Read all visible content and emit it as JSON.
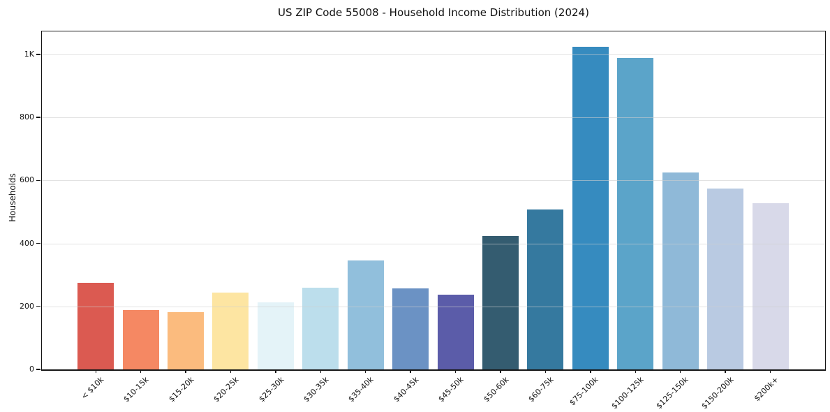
{
  "chart_data": {
    "type": "bar",
    "title": "US ZIP Code 55008 - Household Income Distribution (2024)",
    "xlabel": "",
    "ylabel": "Households",
    "categories": [
      "< $10k",
      "$10-15k",
      "$15-20k",
      "$20-25k",
      "$25-30k",
      "$30-35k",
      "$35-40k",
      "$40-45k",
      "$45-50k",
      "$50-60k",
      "$60-75k",
      "$75-100k",
      "$100-125k",
      "$125-150k",
      "$150-200k",
      "$200k+"
    ],
    "values": [
      275,
      188,
      181,
      243,
      213,
      260,
      346,
      258,
      238,
      423,
      508,
      1024,
      989,
      626,
      574,
      528
    ],
    "bar_colors": [
      "#db5a51",
      "#f58863",
      "#fbbb7e",
      "#fde5a2",
      "#e4f3f8",
      "#bcdeec",
      "#91bfdc",
      "#6b92c4",
      "#5b5ca9",
      "#345c70",
      "#35799f",
      "#368bbf",
      "#5ba4c9",
      "#8fb9d8",
      "#b9cae2",
      "#d8d9e9"
    ],
    "ylim": [
      0,
      1073
    ],
    "yticks": [
      0,
      200,
      400,
      600,
      800,
      1000
    ],
    "ytick_labels": [
      "0",
      "200",
      "400",
      "600",
      "800",
      "1K"
    ],
    "x_tick_rotation_deg": 45,
    "grid": "horizontal",
    "grid_color": "#e3e3e3",
    "spine_color": "#151515",
    "text_color": "#111111",
    "background_color": "#ffffff",
    "legend": "none"
  }
}
